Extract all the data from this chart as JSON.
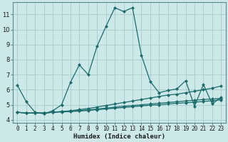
{
  "xlabel": "Humidex (Indice chaleur)",
  "bg_color": "#cce8e8",
  "grid_color": "#aacece",
  "line_color": "#1a6b6b",
  "x_data": [
    0,
    1,
    2,
    3,
    4,
    5,
    6,
    7,
    8,
    9,
    10,
    11,
    12,
    13,
    14,
    15,
    16,
    17,
    18,
    19,
    20,
    21,
    22,
    23
  ],
  "series1": [
    6.3,
    5.2,
    4.5,
    4.4,
    4.6,
    5.0,
    6.5,
    7.65,
    7.0,
    8.9,
    10.2,
    11.45,
    11.2,
    11.45,
    8.3,
    6.55,
    5.8,
    5.95,
    6.05,
    6.6,
    4.9,
    6.35,
    5.05,
    5.5
  ],
  "series2": [
    4.5,
    4.45,
    4.45,
    4.45,
    4.5,
    4.55,
    4.6,
    4.68,
    4.75,
    4.85,
    4.95,
    5.05,
    5.15,
    5.25,
    5.35,
    5.45,
    5.55,
    5.65,
    5.7,
    5.8,
    5.9,
    6.0,
    6.1,
    6.25
  ],
  "series3": [
    4.5,
    4.45,
    4.45,
    4.45,
    4.5,
    4.55,
    4.58,
    4.62,
    4.66,
    4.72,
    4.78,
    4.84,
    4.9,
    4.95,
    5.0,
    5.05,
    5.1,
    5.15,
    5.2,
    5.25,
    5.3,
    5.35,
    5.38,
    5.42
  ],
  "series4": [
    4.5,
    4.45,
    4.45,
    4.45,
    4.5,
    4.52,
    4.55,
    4.58,
    4.62,
    4.67,
    4.72,
    4.77,
    4.82,
    4.87,
    4.92,
    4.97,
    5.0,
    5.05,
    5.1,
    5.13,
    5.17,
    5.22,
    5.27,
    5.32
  ],
  "ylim": [
    3.8,
    11.8
  ],
  "yticks": [
    4,
    5,
    6,
    7,
    8,
    9,
    10,
    11
  ],
  "xticks": [
    0,
    1,
    2,
    3,
    4,
    5,
    6,
    7,
    8,
    9,
    10,
    11,
    12,
    13,
    14,
    15,
    16,
    17,
    18,
    19,
    20,
    21,
    22,
    23
  ],
  "tick_fontsize": 5.5,
  "xlabel_fontsize": 6.5
}
